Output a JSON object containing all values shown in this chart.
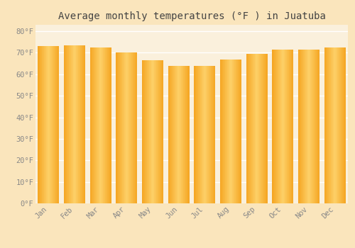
{
  "months": [
    "Jan",
    "Feb",
    "Mar",
    "Apr",
    "May",
    "Jun",
    "Jul",
    "Aug",
    "Sep",
    "Oct",
    "Nov",
    "Dec"
  ],
  "values": [
    73.0,
    73.5,
    72.5,
    70.0,
    66.5,
    64.0,
    64.0,
    67.0,
    69.5,
    71.5,
    71.5,
    72.5
  ],
  "bar_color_left": "#F5A623",
  "bar_color_center": "#FDD068",
  "bar_color_right": "#F5A623",
  "background_color": "#FAE5BC",
  "plot_bg_color": "#FAF0DC",
  "grid_color": "#FFFFFF",
  "title": "Average monthly temperatures (°F ) in Juatuba",
  "title_fontsize": 10,
  "ylabel_ticks": [
    "0°F",
    "10°F",
    "20°F",
    "30°F",
    "40°F",
    "50°F",
    "60°F",
    "70°F",
    "80°F"
  ],
  "ytick_values": [
    0,
    10,
    20,
    30,
    40,
    50,
    60,
    70,
    80
  ],
  "ylim": [
    0,
    83
  ],
  "tick_fontsize": 7.5,
  "tick_color": "#888888",
  "font_family": "monospace"
}
